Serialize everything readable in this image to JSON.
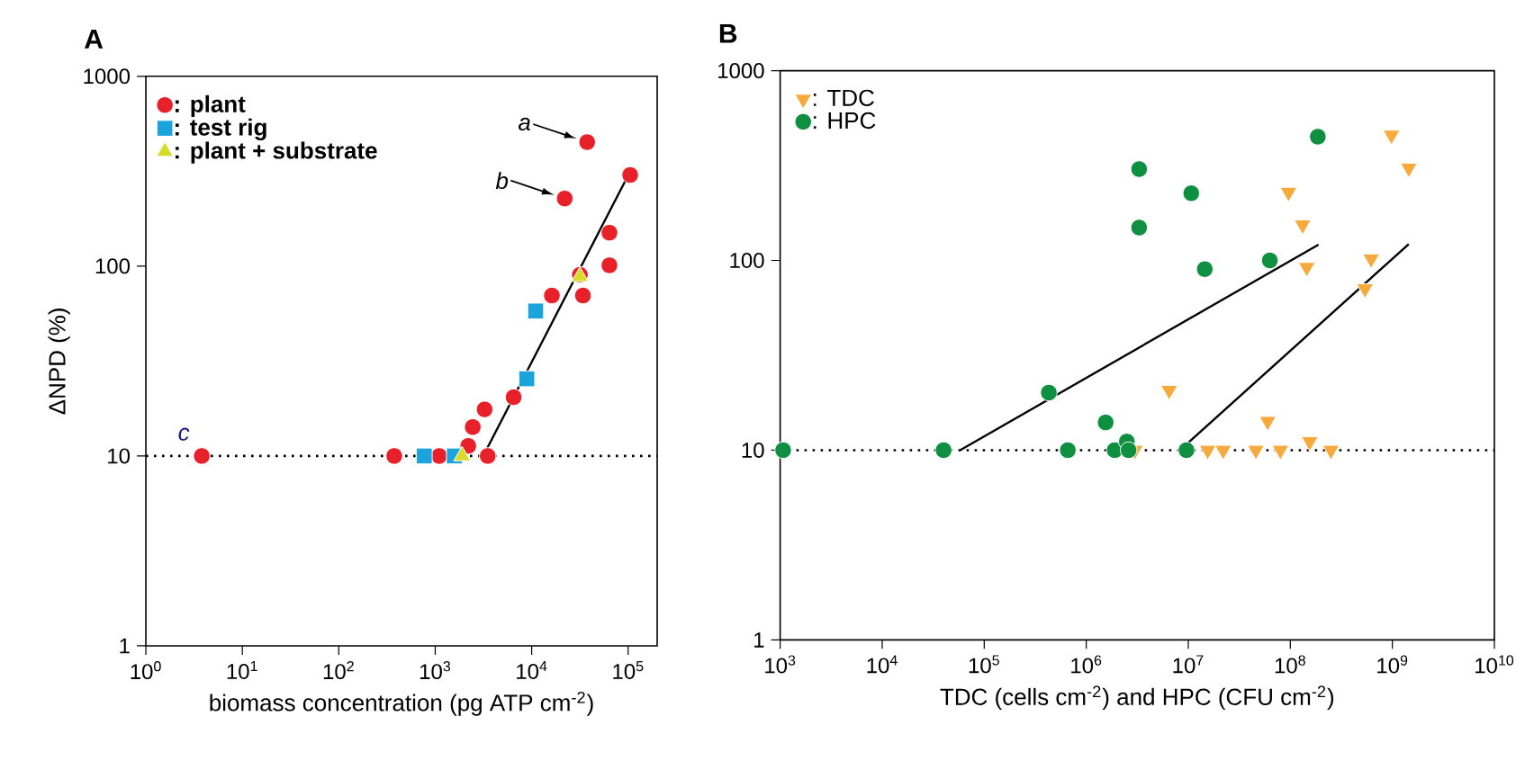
{
  "chart_data": [
    {
      "type": "scatter",
      "title": "A",
      "xlabel": "biomass concentration (pg ATP cm$^{-2}$)",
      "ylabel": "ΔNPD (%)",
      "log": "xy",
      "legend": "top left",
      "xlim": [
        1,
        200000
      ],
      "ylim": [
        1,
        1000
      ],
      "xticks": [
        {
          "value": 1,
          "label": "10$^{0}$"
        },
        {
          "value": 10,
          "label": "10$^{1}$"
        },
        {
          "value": 100,
          "label": "10$^{2}$"
        },
        {
          "value": 1000,
          "label": "10$^{3}$"
        },
        {
          "value": 10000,
          "label": "10$^{4}$"
        },
        {
          "value": 100000,
          "label": "10$^{5}$"
        }
      ],
      "yticks": [
        1,
        10,
        100,
        1000
      ],
      "ref_lines": [
        {
          "axis": "y",
          "value": 10,
          "line_style": "dotted",
          "color": "#000000"
        }
      ],
      "annotations": [
        {
          "text": "a",
          "x": 37600,
          "y": 450
        },
        {
          "text": "b",
          "x": 22000,
          "y": 227
        },
        {
          "text": "c",
          "x": 3.8,
          "y": 10
        }
      ],
      "series": [
        {
          "name": ": plant",
          "color": "#e8202a",
          "marker": "circle",
          "x": [
            3.8,
            376,
            1100,
            2200,
            3500,
            2450,
            3250,
            6500,
            16200,
            34000,
            31600,
            64000,
            64000,
            22000,
            37600,
            105000
          ],
          "values": [
            10,
            10,
            10,
            11.3,
            10,
            14.2,
            17.6,
            20.4,
            70,
            70,
            90,
            101,
            150,
            227,
            450,
            302
          ]
        },
        {
          "name": ": test rig",
          "color": "#1ba3dc",
          "marker": "square",
          "x": [
            770,
            1580,
            8900,
            11000
          ],
          "values": [
            10,
            10,
            25.5,
            58
          ]
        },
        {
          "name": ": plant + substrate",
          "color": "#d7dc2a",
          "marker": "triangle",
          "x": [
            1900,
            31600
          ],
          "values": [
            10,
            88
          ]
        },
        {
          "type": "line",
          "color": "#000000",
          "line_style": "solid",
          "x": [
            3300,
            93000
          ],
          "values": [
            10.5,
            280
          ]
        }
      ]
    },
    {
      "type": "scatter",
      "title": "B",
      "xlabel": "TDC (cells cm$^{-2}$) and HPC (CFU cm$^{-2}$)",
      "log": "xy",
      "legend": "top left",
      "xlim": [
        1000,
        10000000000
      ],
      "ylim": [
        1,
        1000
      ],
      "xticks": [
        {
          "value": 1000,
          "label": "10$^{3}$"
        },
        {
          "value": 10000,
          "label": "10$^{4}$"
        },
        {
          "value": 100000,
          "label": "10$^{5}$"
        },
        {
          "value": 1000000,
          "label": "10$^{6}$"
        },
        {
          "value": 10000000,
          "label": "10$^{7}$"
        },
        {
          "value": 100000000,
          "label": "10$^{8}$"
        },
        {
          "value": 1000000000,
          "label": "10$^{9}$"
        },
        {
          "value": 10000000000,
          "label": "10$^{10}$"
        }
      ],
      "yticks": [
        1,
        10,
        100,
        1000
      ],
      "ref_lines": [
        {
          "axis": "y",
          "value": 10,
          "line_style": "dotted",
          "color": "#000000"
        }
      ],
      "series": [
        {
          "name": ": TDC",
          "color": "#f8a93c",
          "marker": "triangle-down",
          "x": [
            980000000,
            1450000000,
            96000000,
            132000000,
            145000000,
            620000000,
            540000000,
            6500000,
            60000000,
            155000000,
            3000000,
            15500000,
            22000000,
            46000000,
            80000000,
            250000000
          ],
          "values": [
            458,
            307,
            229,
            154,
            92,
            102,
            71,
            20.7,
            14.2,
            11.1,
            10,
            10,
            10,
            10,
            10,
            10
          ]
        },
        {
          "name": ": HPC",
          "color": "#0f8f40",
          "marker": "circle",
          "x": [
            1070,
            40000,
            430000,
            660000,
            1550000,
            1900000,
            2500000,
            2600000,
            3300000,
            3300000,
            10700000,
            14500000,
            9600000,
            63000000,
            186000000
          ],
          "values": [
            10,
            10,
            20.1,
            10,
            14,
            10,
            11.1,
            10,
            303,
            149,
            226,
            90,
            10,
            100,
            449
          ]
        },
        {
          "type": "line",
          "color": "#000000",
          "line_style": "solid",
          "x": [
            58000,
            189000000
          ],
          "values": [
            10,
            121
          ]
        },
        {
          "type": "line",
          "color": "#000000",
          "line_style": "solid",
          "x": [
            8300000,
            1450000000
          ],
          "values": [
            10,
            122
          ]
        }
      ]
    }
  ]
}
